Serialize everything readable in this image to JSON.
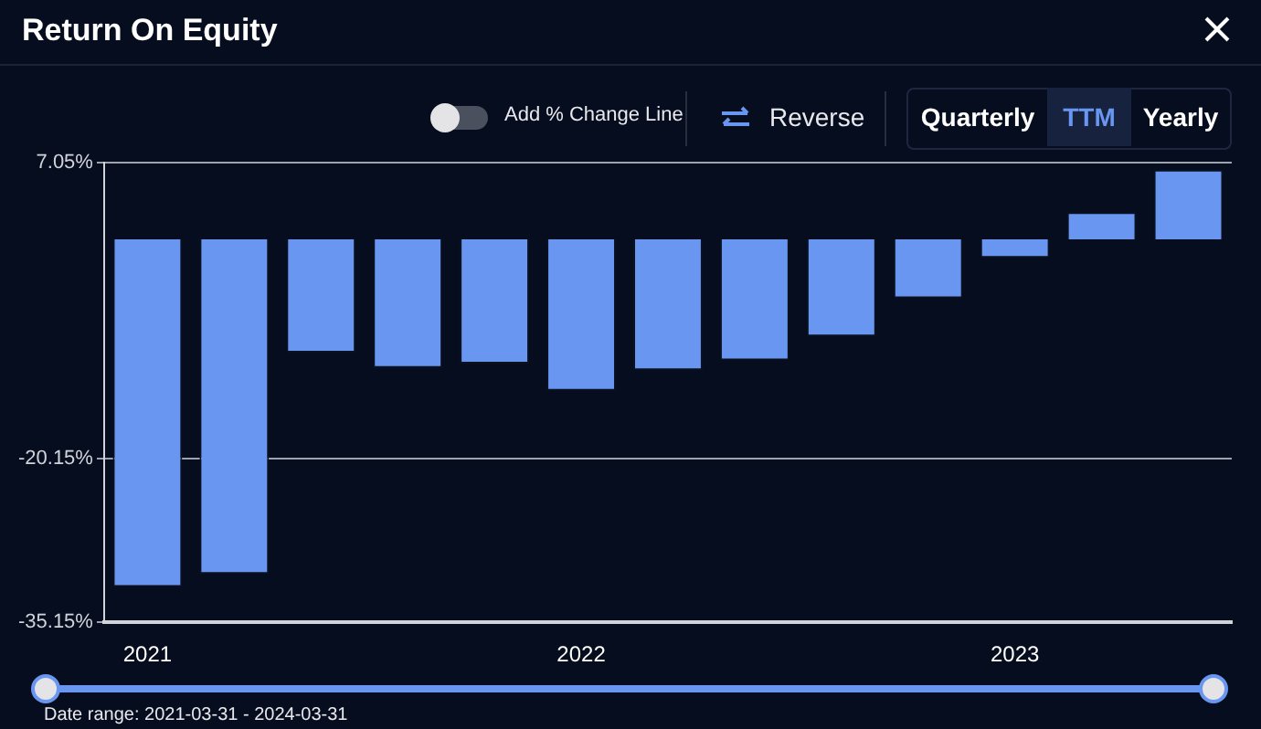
{
  "chart_data": {
    "type": "bar",
    "title": "Return On Equity",
    "categories": [
      "2021",
      null,
      null,
      null,
      null,
      "2022",
      null,
      null,
      null,
      null,
      "2023",
      null,
      null
    ],
    "values": [
      -31.9,
      -30.7,
      -10.4,
      -11.8,
      -11.4,
      -13.9,
      -12.0,
      -11.1,
      -8.9,
      -5.4,
      -1.7,
      2.5,
      6.4
    ],
    "color": "#6996f0",
    "ylim": [
      -35.15,
      7.05
    ],
    "yticks": [
      {
        "value": 7.05,
        "label": "7.05%"
      },
      {
        "value": -20.15,
        "label": "-20.15%"
      },
      {
        "value": -35.15,
        "label": "-35.15%"
      }
    ],
    "grid": "y",
    "legend": false,
    "annotations": [
      "Add % Change Line",
      "Reverse",
      "Quarterly",
      "TTM",
      "Yearly",
      "Date range: 2021-03-31 - 2024-03-31"
    ]
  }
}
